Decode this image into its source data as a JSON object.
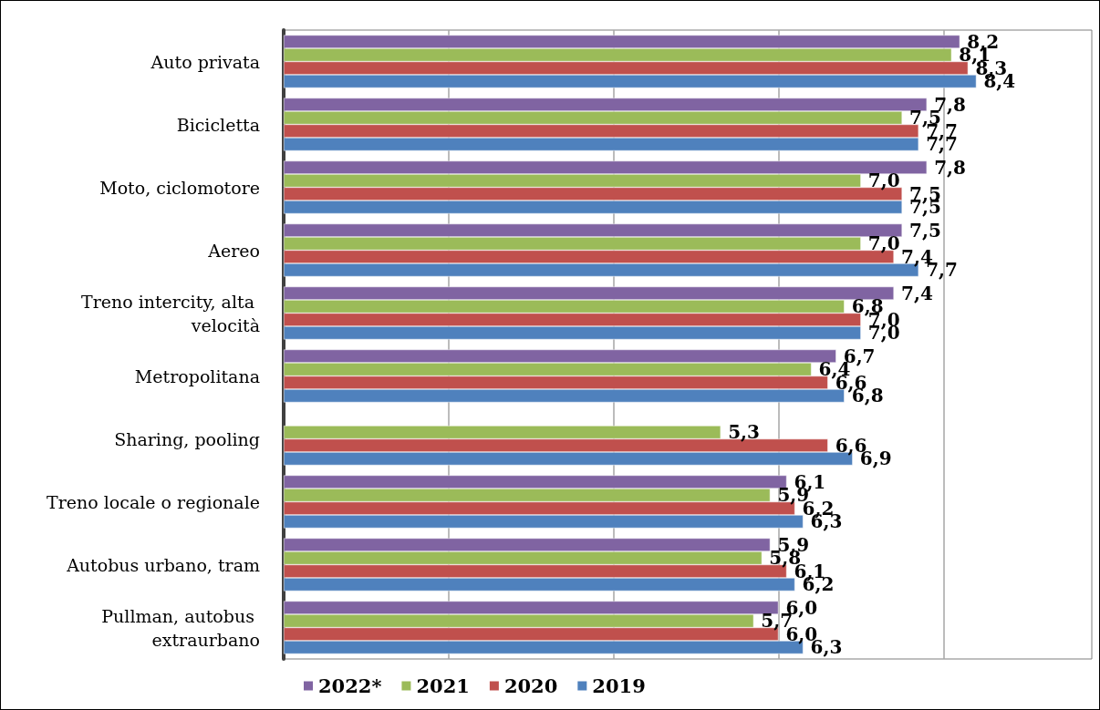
{
  "chart_data": {
    "type": "bar",
    "orientation": "horizontal",
    "categories": [
      "Auto privata",
      "Bicicletta",
      "Moto, ciclomotore",
      "Aereo",
      "Treno intercity, alta velocità",
      "Metropolitana",
      "Sharing, pooling",
      "Treno locale o regionale",
      "Autobus urbano, tram",
      "Pullman, autobus extraurbano"
    ],
    "series": [
      {
        "name": "2022*",
        "color": "#8064a2",
        "values": [
          8.2,
          7.8,
          7.8,
          7.5,
          7.4,
          6.7,
          null,
          6.1,
          5.9,
          6.0
        ],
        "value_labels": [
          "8,2",
          "7,8",
          "7,8",
          "7,5",
          "7,4",
          "6,7",
          null,
          "6,1",
          "5,9",
          "6,0"
        ]
      },
      {
        "name": "2021",
        "color": "#9bbb59",
        "values": [
          8.1,
          7.5,
          7.0,
          7.0,
          6.8,
          6.4,
          5.3,
          5.9,
          5.8,
          5.7
        ],
        "value_labels": [
          "8,1",
          "7,5",
          "7,0",
          "7,0",
          "6,8",
          "6,4",
          "5,3",
          "5,9",
          "5,8",
          "5,7"
        ]
      },
      {
        "name": "2020",
        "color": "#c0504d",
        "values": [
          8.3,
          7.7,
          7.5,
          7.4,
          7.0,
          6.6,
          6.6,
          6.2,
          6.1,
          6.0
        ],
        "value_labels": [
          "8,3",
          "7,7",
          "7,5",
          "7,4",
          "7,0",
          "6,6",
          "6,6",
          "6,2",
          "6,1",
          "6,0"
        ]
      },
      {
        "name": "2019",
        "color": "#4f81bd",
        "values": [
          8.4,
          7.7,
          7.5,
          7.7,
          7.0,
          6.8,
          6.9,
          6.3,
          6.2,
          6.3
        ],
        "value_labels": [
          "8,4",
          "7,7",
          "7,5",
          "7,7",
          "7,0",
          "6,8",
          "6,9",
          "6,3",
          "6,2",
          "6,3"
        ]
      }
    ],
    "xlim": [
      0,
      9.8
    ],
    "xticks": [
      {
        "value": 0,
        "label": null
      },
      {
        "value": 2,
        "label": null
      },
      {
        "value": 4,
        "label": null
      },
      {
        "value": 6,
        "label": null
      },
      {
        "value": 8,
        "label": null
      }
    ],
    "tick_labels": "y",
    "grid": "x",
    "legend": "bottom left"
  }
}
